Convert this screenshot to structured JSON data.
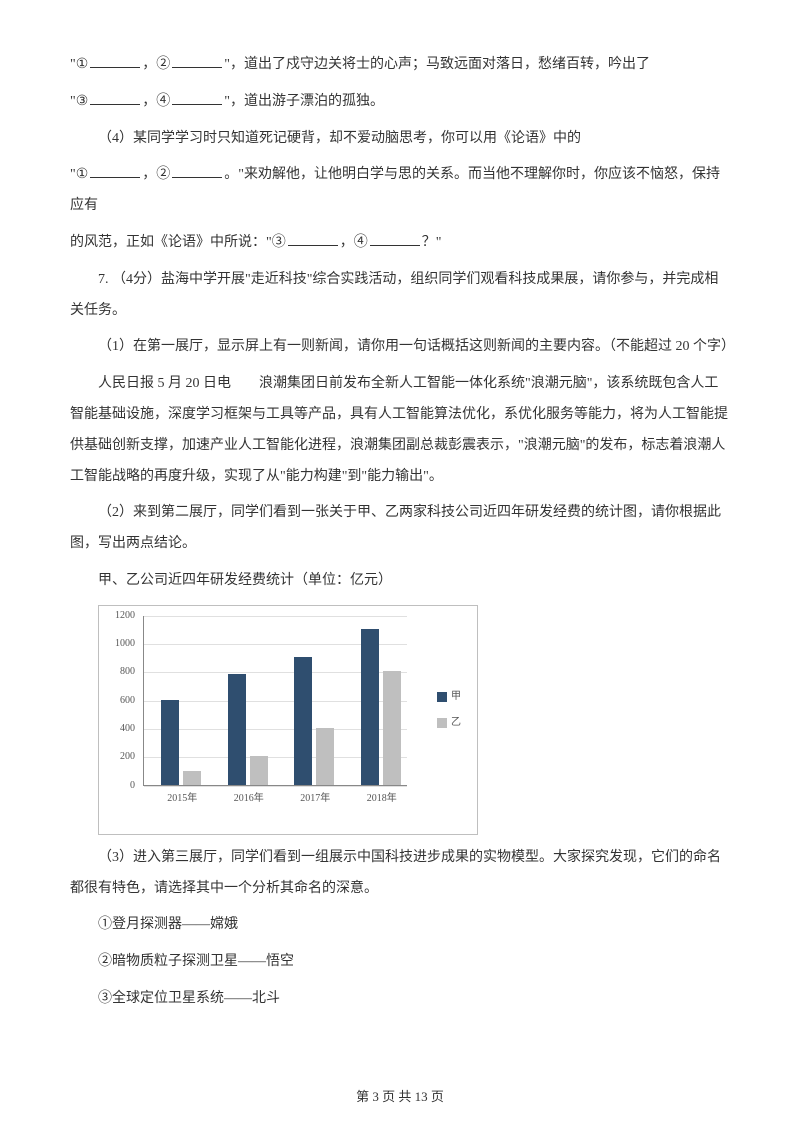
{
  "q_intro1_a": "\"①",
  "q_intro1_b": "，②",
  "q_intro1_c": "\"，道出了戍守边关将士的心声；马致远面对落日，愁绪百转，吟出了",
  "q_intro2_a": "\"③",
  "q_intro2_b": "，④",
  "q_intro2_c": "\"，道出游子漂泊的孤独。",
  "q4_lead": "（4）某同学学习时只知道死记硬背，却不爱动脑思考，你可以用《论语》中的",
  "q4_line2_a": "\"①",
  "q4_line2_b": "，②",
  "q4_line2_c": "。\"来劝解他，让他明白学与思的关系。而当他不理解你时，你应该不恼怒，保持应有",
  "q4_line3_a": "的风范，正如《论语》中所说：\"③",
  "q4_line3_b": "，④",
  "q4_line3_c": "？\"",
  "q7_lead": "7. （4分）盐海中学开展\"走近科技\"综合实践活动，组织同学们观看科技成果展，请你参与，并完成相关任务。",
  "q7_1": "（1）在第一展厅，显示屏上有一则新闻，请你用一句话概括这则新闻的主要内容。（不能超过 20 个字）",
  "q7_1_news": "人民日报 5 月 20 日电　　浪潮集团日前发布全新人工智能一体化系统\"浪潮元脑\"，该系统既包含人工智能基础设施，深度学习框架与工具等产品，具有人工智能算法优化，系优化服务等能力，将为人工智能提供基础创新支撑，加速产业人工智能化进程，浪潮集团副总裁彭震表示，\"浪潮元脑\"的发布，标志着浪潮人工智能战略的再度升级，实现了从\"能力构建\"到\"能力输出\"。",
  "q7_2": "（2）来到第二展厅，同学们看到一张关于甲、乙两家科技公司近四年研发经费的统计图，请你根据此图，写出两点结论。",
  "q7_2_caption": "甲、乙公司近四年研发经费统计（单位：亿元）",
  "q7_3": "（3）进入第三展厅，同学们看到一组展示中国科技进步成果的实物模型。大家探究发现，它们的命名都很有特色，请选择其中一个分析其命名的深意。",
  "q7_3_1": "①登月探测器——嫦娥",
  "q7_3_2": "②暗物质粒子探测卫星——悟空",
  "q7_3_3": "③全球定位卫星系统——北斗",
  "footer": "第 3 页 共 13 页",
  "chart": {
    "type": "bar",
    "categories": [
      "2015年",
      "2016年",
      "2017年",
      "2018年"
    ],
    "series_a_name": "甲",
    "series_b_name": "乙",
    "series_a_values": [
      600,
      780,
      900,
      1100
    ],
    "series_b_values": [
      100,
      200,
      400,
      800
    ],
    "color_a": "#2f4e6f",
    "color_b": "#bfbfbf",
    "ylim": [
      0,
      1200
    ],
    "ytick_step": 200,
    "yticks": [
      0,
      200,
      400,
      600,
      800,
      1000,
      1200
    ],
    "grid_color": "#e0e0e0",
    "axis_color": "#888888",
    "label_fontsize": 10,
    "background_color": "#ffffff"
  }
}
